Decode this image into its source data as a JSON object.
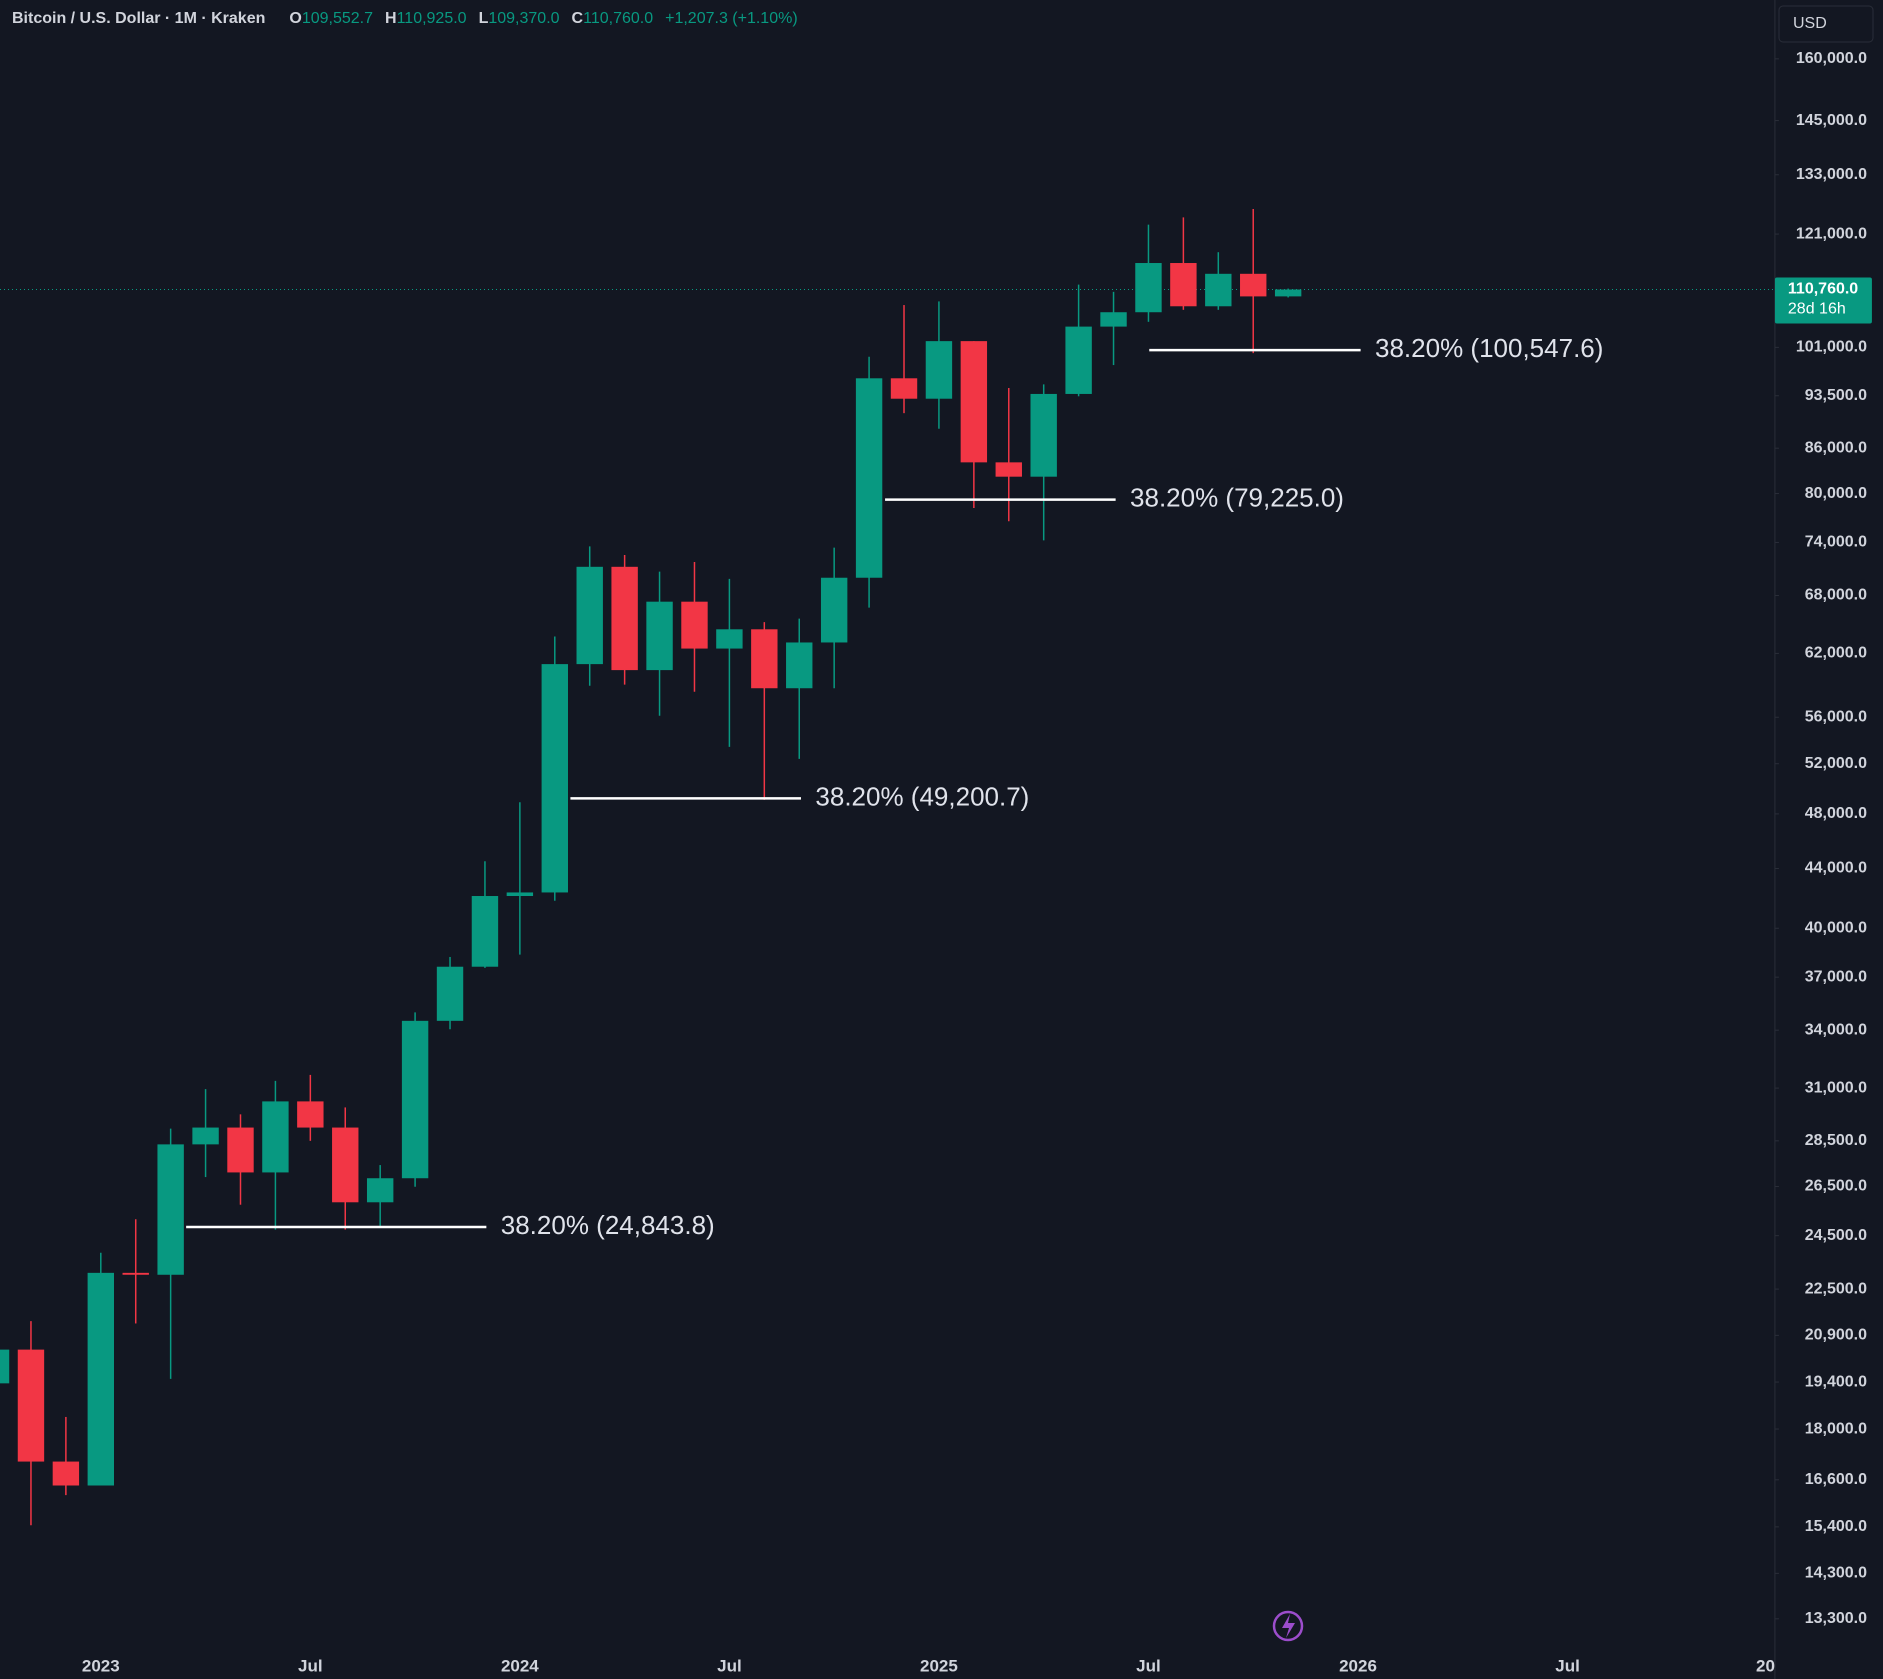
{
  "chart_data": {
    "type": "candlestick",
    "title": "Bitcoin / U.S. Dollar · 1M · Kraken",
    "ohlc_header": [
      {
        "key": "O",
        "text": "109,552.7"
      },
      {
        "key": "H",
        "text": "110,925.0"
      },
      {
        "key": "L",
        "text": "109,370.0"
      },
      {
        "key": "C",
        "text": "110,760.0"
      }
    ],
    "change": "+1,207.3 (+1.10%)",
    "currency": "USD",
    "categories": [
      null,
      null,
      null,
      "2023",
      null,
      null,
      null,
      null,
      null,
      "Jul",
      null,
      null,
      null,
      null,
      null,
      "2024",
      null,
      null,
      null,
      null,
      null,
      "Jul",
      null,
      null,
      null,
      null,
      null,
      "2025",
      null,
      null,
      null,
      null,
      null,
      "Jul",
      null,
      null,
      null,
      null,
      null,
      "2026",
      null,
      null,
      null,
      null,
      null,
      "Jul",
      null,
      null,
      null,
      null,
      null,
      "20"
    ],
    "open": [
      19360,
      20430,
      17090,
      16450,
      23090,
      23020,
      28340,
      29110,
      27100,
      30350,
      29110,
      25840,
      26850,
      34510,
      37620,
      42110,
      42350,
      60950,
      71180,
      60370,
      67330,
      62480,
      64430,
      58650,
      63090,
      69950,
      96140,
      93060,
      102010,
      84080,
      82180,
      93770,
      104400,
      106820,
      115540,
      107840,
      113570,
      109552.7,
      null,
      null,
      null,
      null,
      null,
      null,
      null,
      null,
      null,
      null,
      null,
      null,
      null,
      null
    ],
    "high": [
      20700,
      21380,
      18350,
      23840,
      25150,
      29060,
      30950,
      29730,
      31360,
      31660,
      30060,
      27420,
      34980,
      38210,
      44510,
      48900,
      63690,
      73540,
      72540,
      70640,
      71730,
      69830,
      65170,
      65540,
      73390,
      99500,
      108050,
      108680,
      102010,
      94670,
      95220,
      111630,
      110350,
      122830,
      124260,
      117550,
      125940,
      110925.0,
      null,
      null,
      null,
      null,
      null,
      null,
      null,
      null,
      null,
      null,
      null,
      null,
      null,
      null
    ],
    "low": [
      19100,
      15440,
      16200,
      16450,
      21300,
      19500,
      26900,
      25740,
      24740,
      28500,
      24740,
      24830,
      26490,
      34050,
      37550,
      38350,
      41790,
      58880,
      58990,
      56130,
      58320,
      53410,
      49090,
      52400,
      58650,
      66690,
      90940,
      88710,
      78180,
      76550,
      74240,
      93420,
      98190,
      105200,
      107230,
      107230,
      100080,
      109370.0,
      null,
      null,
      null,
      null,
      null,
      null,
      null,
      null,
      null,
      null,
      null,
      null,
      null,
      null
    ],
    "close": [
      20430,
      17090,
      16450,
      23090,
      23020,
      28340,
      29110,
      27100,
      30350,
      29110,
      25840,
      26850,
      34510,
      37620,
      42110,
      42350,
      60950,
      71180,
      60370,
      67330,
      62480,
      64430,
      58650,
      63090,
      69950,
      96140,
      93060,
      102010,
      84080,
      82180,
      93770,
      104400,
      106820,
      115540,
      107840,
      113570,
      109550,
      110760.0,
      null,
      null,
      null,
      null,
      null,
      null,
      null,
      null,
      null,
      null,
      null,
      null,
      null,
      null
    ],
    "up_color": "#089981",
    "down_color": "#f23645",
    "log_scale": true,
    "grid": false,
    "ylim": [
      12630,
      175740
    ],
    "yticks": [
      {
        "value": 160000,
        "label": "160,000.0"
      },
      {
        "value": 145000,
        "label": "145,000.0"
      },
      {
        "value": 133000,
        "label": "133,000.0"
      },
      {
        "value": 121000,
        "label": "121,000.0"
      },
      {
        "value": 101000,
        "label": "101,000.0"
      },
      {
        "value": 93500,
        "label": "93,500.0"
      },
      {
        "value": 86000,
        "label": "86,000.0"
      },
      {
        "value": 80000,
        "label": "80,000.0"
      },
      {
        "value": 74000,
        "label": "74,000.0"
      },
      {
        "value": 68000,
        "label": "68,000.0"
      },
      {
        "value": 62000,
        "label": "62,000.0"
      },
      {
        "value": 56000,
        "label": "56,000.0"
      },
      {
        "value": 52000,
        "label": "52,000.0"
      },
      {
        "value": 48000,
        "label": "48,000.0"
      },
      {
        "value": 44000,
        "label": "44,000.0"
      },
      {
        "value": 40000,
        "label": "40,000.0"
      },
      {
        "value": 37000,
        "label": "37,000.0"
      },
      {
        "value": 34000,
        "label": "34,000.0"
      },
      {
        "value": 31000,
        "label": "31,000.0"
      },
      {
        "value": 28500,
        "label": "28,500.0"
      },
      {
        "value": 26500,
        "label": "26,500.0"
      },
      {
        "value": 24500,
        "label": "24,500.0"
      },
      {
        "value": 22500,
        "label": "22,500.0"
      },
      {
        "value": 20900,
        "label": "20,900.0"
      },
      {
        "value": 19400,
        "label": "19,400.0"
      },
      {
        "value": 18000,
        "label": "18,000.0"
      },
      {
        "value": 16600,
        "label": "16,600.0"
      },
      {
        "value": 15400,
        "label": "15,400.0"
      },
      {
        "value": 14300,
        "label": "14,300.0"
      },
      {
        "value": 13300,
        "label": "13,300.0"
      }
    ],
    "current_price": {
      "value": 110760.0,
      "label": "110,760.0",
      "countdown": "28d 16h"
    },
    "annotations": [
      {
        "text": "38.20% (24,843.8)",
        "value": 24843.8
      },
      {
        "text": "38.20% (49,200.7)",
        "value": 49200.7
      },
      {
        "text": "38.20% (79,225.0)",
        "value": 79225.0
      },
      {
        "text": "38.20% (100,547.6)",
        "value": 100547.6
      }
    ]
  }
}
